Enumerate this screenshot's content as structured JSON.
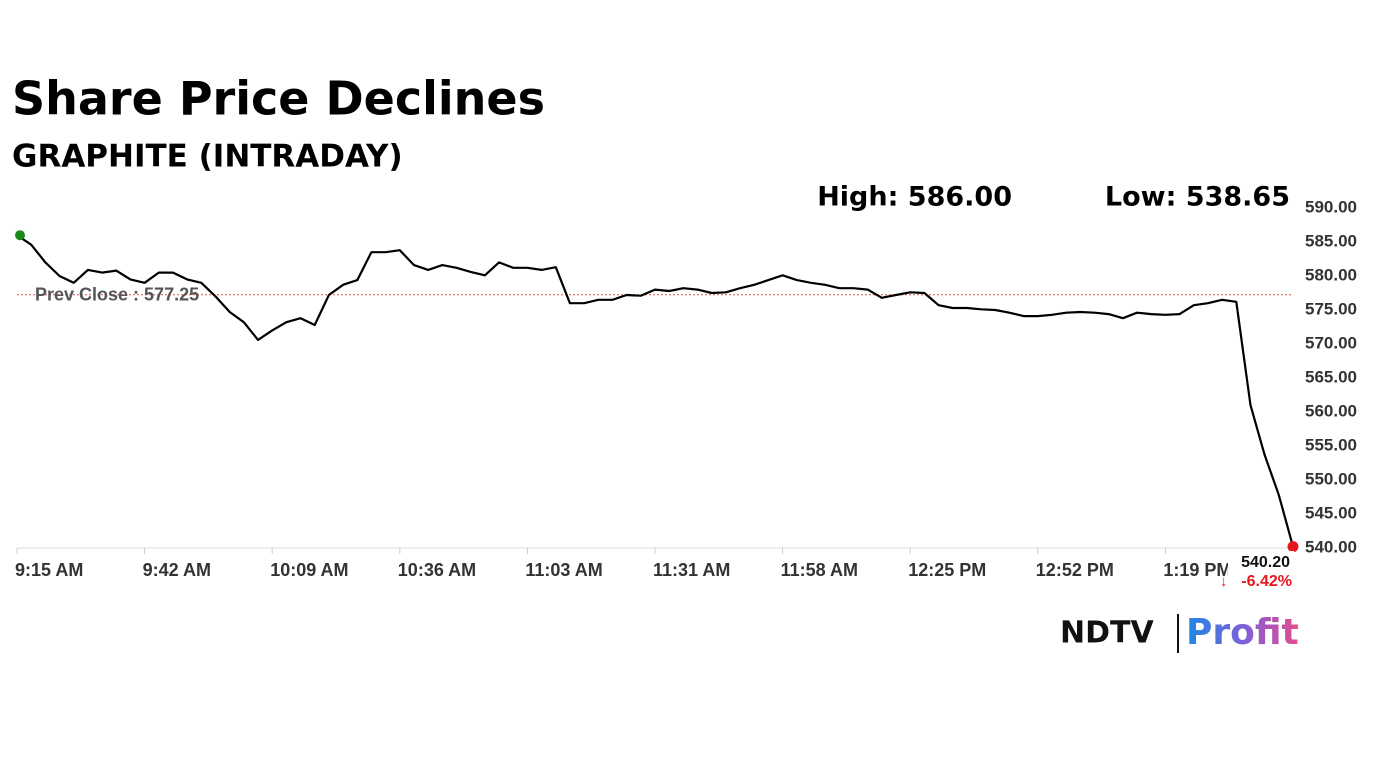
{
  "chart_data": {
    "type": "line",
    "title": "Share Price Declines",
    "subtitle": "GRAPHITE (INTRADAY)",
    "high_label": "High: 586.00",
    "low_label": "Low: 538.65",
    "last_label": "540.20",
    "change_label": "-6.42%",
    "prev_close": {
      "value": 577.25,
      "label": "Prev Close : 577.25"
    },
    "categories": [
      "9:15 AM",
      null,
      null,
      null,
      null,
      null,
      null,
      null,
      null,
      "9:42 AM",
      null,
      null,
      null,
      null,
      null,
      null,
      null,
      null,
      "10:09 AM",
      null,
      null,
      null,
      null,
      null,
      null,
      null,
      null,
      "10:36 AM",
      null,
      null,
      null,
      null,
      null,
      null,
      null,
      null,
      "11:03 AM",
      null,
      null,
      null,
      null,
      null,
      null,
      null,
      null,
      "11:31 AM",
      null,
      null,
      null,
      null,
      null,
      null,
      null,
      null,
      "11:58 AM",
      null,
      null,
      null,
      null,
      null,
      null,
      null,
      null,
      "12:25 PM",
      null,
      null,
      null,
      null,
      null,
      null,
      null,
      null,
      "12:52 PM",
      null,
      null,
      null,
      null,
      null,
      null,
      null,
      null,
      "1:19 PM",
      null,
      null,
      null,
      null,
      null,
      null,
      null,
      null,
      null
    ],
    "series": [
      {
        "name": "GRAPHITE",
        "color": "#000000",
        "start_color": "#1a8a1a",
        "end_color": "#e8141e",
        "values": [
          586,
          584.6,
          582,
          580,
          579,
          580.9,
          580.5,
          580.8,
          579.5,
          579,
          580.5,
          580.5,
          579.5,
          579,
          577,
          574.7,
          573.2,
          570.6,
          572,
          573.2,
          573.8,
          572.8,
          577.2,
          578.7,
          579.4,
          583.5,
          583.5,
          583.8,
          581.6,
          580.9,
          581.6,
          581.2,
          580.6,
          580.1,
          582,
          581.2,
          581.2,
          580.9,
          581.3,
          576,
          576,
          576.5,
          576.5,
          577.2,
          577.1,
          578,
          577.8,
          578.2,
          578,
          577.5,
          577.6,
          578.2,
          578.7,
          579.4,
          580.1,
          579.4,
          579,
          578.7,
          578.2,
          578.2,
          578,
          576.8,
          577.2,
          577.6,
          577.5,
          575.7,
          575.3,
          575.3,
          575.1,
          575,
          574.6,
          574.1,
          574.1,
          574.3,
          574.6,
          574.7,
          574.6,
          574.4,
          573.8,
          574.6,
          574.4,
          574.3,
          574.4,
          575.7,
          576,
          576.5,
          576.2,
          561,
          553.7,
          547.8,
          540.2
        ]
      }
    ],
    "ylim": [
      540,
      590
    ],
    "yticks": [
      {
        "value": 540,
        "label": "540.00"
      },
      {
        "value": 545,
        "label": "545.00"
      },
      {
        "value": 550,
        "label": "550.00"
      },
      {
        "value": 555,
        "label": "555.00"
      },
      {
        "value": 560,
        "label": "560.00"
      },
      {
        "value": 565,
        "label": "565.00"
      },
      {
        "value": 570,
        "label": "570.00"
      },
      {
        "value": 575,
        "label": "575.00"
      },
      {
        "value": 580,
        "label": "580.00"
      },
      {
        "value": 585,
        "label": "585.00"
      },
      {
        "value": 590,
        "label": "590.00"
      }
    ],
    "prev_close_color": "#d9534f",
    "logo": {
      "left": "NDTV",
      "right": "Profit"
    }
  }
}
